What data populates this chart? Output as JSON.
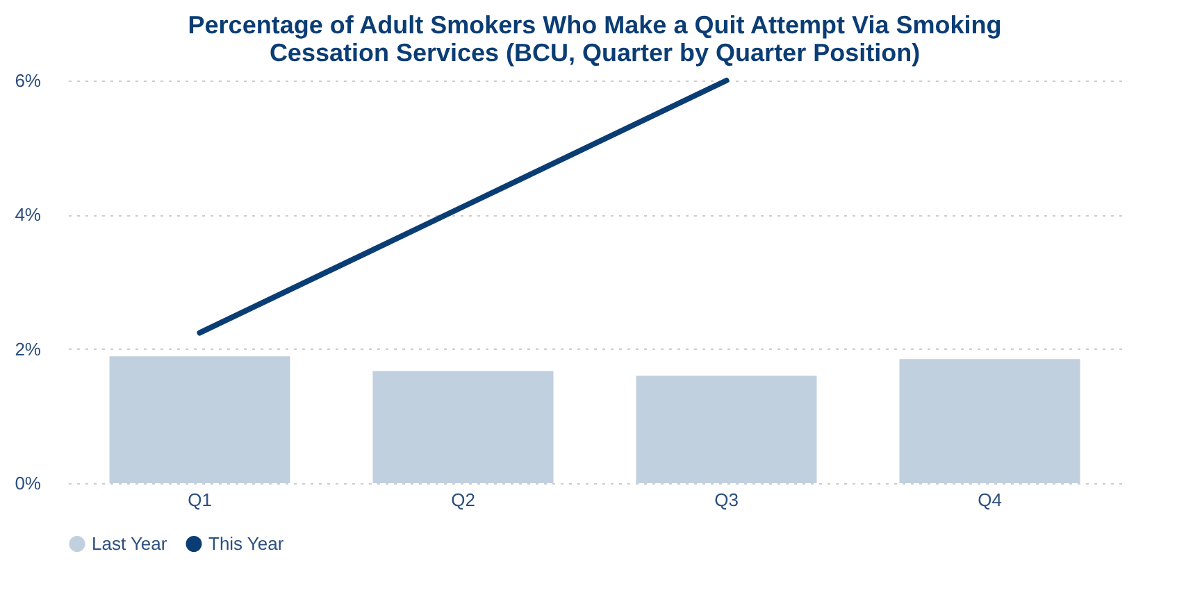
{
  "chart_data": {
    "type": "bar",
    "title": "Percentage of Adult Smokers Who Make a Quit Attempt Via Smoking Cessation Services (BCU, Quarter by Quarter Position)",
    "categories": [
      "Q1",
      "Q2",
      "Q3",
      "Q4"
    ],
    "series": [
      {
        "name": "Last Year",
        "color": "#c1d0df",
        "values": [
          1.89,
          1.67,
          1.6,
          1.85
        ]
      },
      {
        "name": "This Year",
        "type": "line",
        "color": "#0b3d75",
        "values": [
          2.24,
          4.12,
          6.0,
          null
        ]
      }
    ],
    "ylim": [
      0,
      6
    ],
    "yticks": [
      {
        "value": 0,
        "label": "0%"
      },
      {
        "value": 2,
        "label": "2%"
      },
      {
        "value": 4,
        "label": "4%"
      },
      {
        "value": 6,
        "label": "6%"
      }
    ],
    "grid": "y",
    "legend": "bottom"
  }
}
